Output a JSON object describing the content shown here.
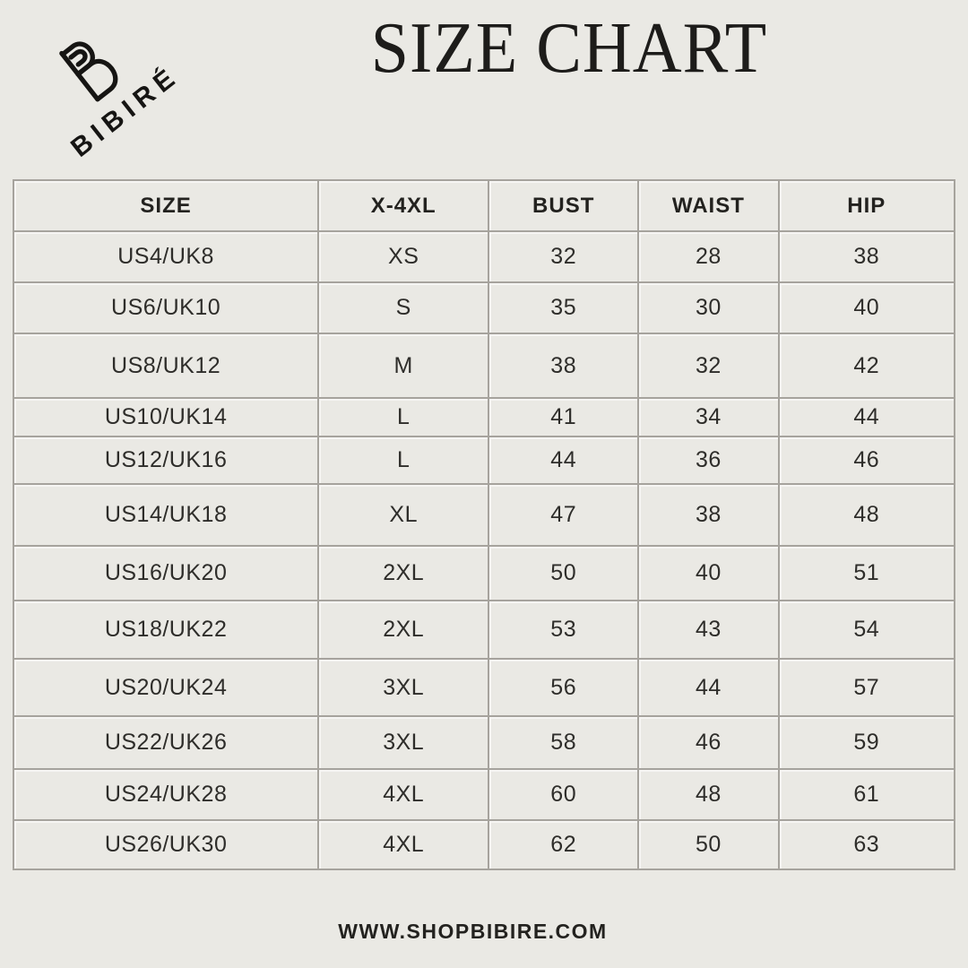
{
  "brand": {
    "name": "BIBIRÉ",
    "monogram_icon": "bibire-monogram"
  },
  "title": "SIZE CHART",
  "footer": "WWW.SHOPBIBIRE.COM",
  "colors": {
    "background": "#eae9e4",
    "border": "#a6a39d",
    "text": "#262522",
    "brand": "#161513"
  },
  "chart_data": {
    "type": "table",
    "title": "SIZE CHART",
    "columns": [
      "SIZE",
      "X-4XL",
      "BUST",
      "WAIST",
      "HIP"
    ],
    "rows": [
      [
        "US4/UK8",
        "XS",
        "32",
        "28",
        "38"
      ],
      [
        "US6/UK10",
        "S",
        "35",
        "30",
        "40"
      ],
      [
        "US8/UK12",
        "M",
        "38",
        "32",
        "42"
      ],
      [
        "US10/UK14",
        "L",
        "41",
        "34",
        "44"
      ],
      [
        "US12/UK16",
        "L",
        "44",
        "36",
        "46"
      ],
      [
        "US14/UK18",
        "XL",
        "47",
        "38",
        "48"
      ],
      [
        "US16/UK20",
        "2XL",
        "50",
        "40",
        "51"
      ],
      [
        "US18/UK22",
        "2XL",
        "53",
        "43",
        "54"
      ],
      [
        "US20/UK24",
        "3XL",
        "56",
        "44",
        "57"
      ],
      [
        "US22/UK26",
        "3XL",
        "58",
        "46",
        "59"
      ],
      [
        "US24/UK28",
        "4XL",
        "60",
        "48",
        "61"
      ],
      [
        "US26/UK30",
        "4XL",
        "62",
        "50",
        "63"
      ]
    ]
  }
}
